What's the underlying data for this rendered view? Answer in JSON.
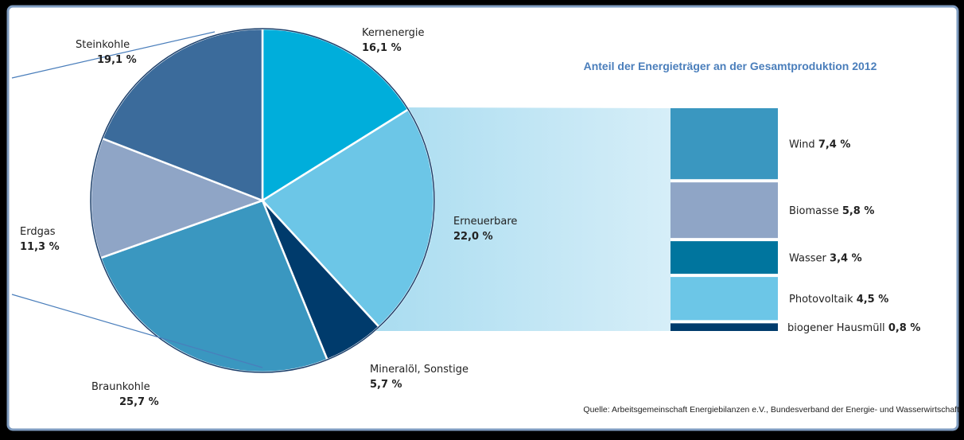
{
  "chart_data": {
    "type": "pie",
    "title": "Anteil der Energieträger an der Gesamtproduktion 2012",
    "source": "Quelle: Arbeitsgemeinschaft Energiebilanzen e.V., Bundesverband der Energie- und Wasserwirtschaft",
    "categories": [
      "Kernenergie",
      "Erneuerbare",
      "Mineralöl, Sonstige",
      "Braunkohle",
      "Erdgas",
      "Steinkohle"
    ],
    "values": [
      16.1,
      22.0,
      5.7,
      25.7,
      11.3,
      19.1
    ],
    "value_labels": [
      "16,1 %",
      "22,0 %",
      "5,7 %",
      "25,7 %",
      "11,3 %",
      "19,1 %"
    ],
    "colors": [
      "#00aedb",
      "#6cc6e7",
      "#003b6c",
      "#3a97c0",
      "#8fa5c6",
      "#3b6b9b"
    ],
    "breakdown": {
      "type": "stacked-bar",
      "categories": [
        "Wind",
        "Biomasse",
        "Wasser",
        "Photovoltaik",
        "biogener Hausmüll"
      ],
      "values": [
        7.4,
        5.8,
        3.4,
        4.5,
        0.8
      ],
      "value_labels": [
        "7,4 %",
        "5,8 %",
        "3,4 %",
        "4,5 %",
        "0,8 %"
      ],
      "colors": [
        "#3a97c0",
        "#8fa5c6",
        "#00759e",
        "#6cc6e7",
        "#003b6c"
      ]
    }
  }
}
